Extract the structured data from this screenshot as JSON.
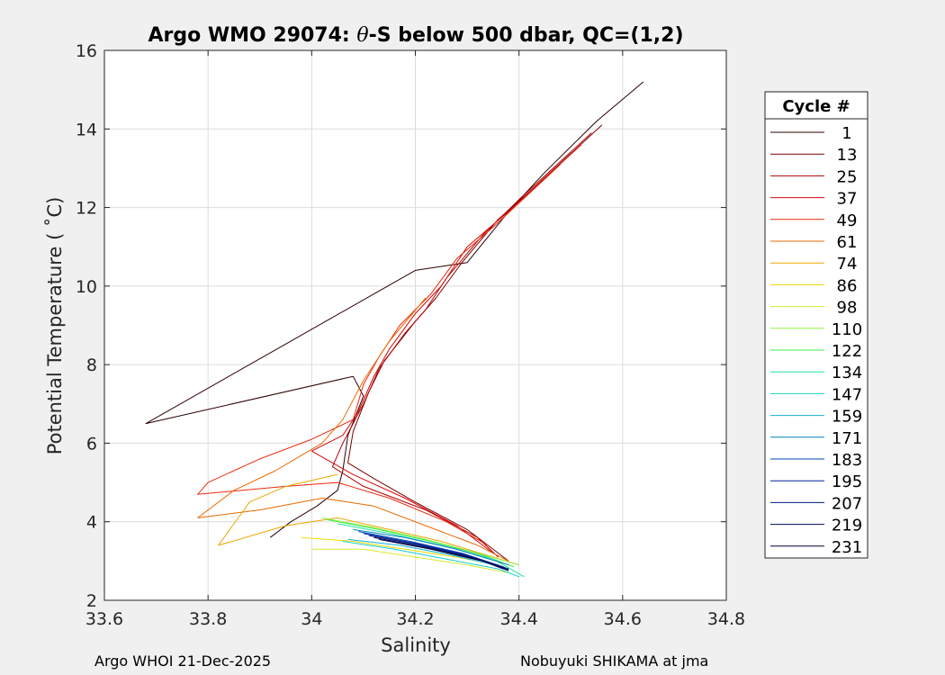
{
  "chart_data": {
    "type": "line",
    "title_prefix": "Argo WMO 29074: ",
    "title_theta": "θ",
    "title_suffix": "-S below 500 dbar,  QC=(1,2)",
    "xlabel": "Salinity",
    "ylabel": "Potential Temperature ( ˚C)",
    "xlim": [
      33.6,
      34.8
    ],
    "ylim": [
      2,
      16
    ],
    "xticks": [
      33.6,
      33.8,
      34,
      34.2,
      34.4,
      34.6,
      34.8
    ],
    "xtick_labels": [
      "33.6",
      "33.8",
      "34",
      "34.2",
      "34.4",
      "34.6",
      "34.8"
    ],
    "yticks": [
      2,
      4,
      6,
      8,
      10,
      12,
      14,
      16
    ],
    "ytick_labels": [
      "2",
      "4",
      "6",
      "8",
      "10",
      "12",
      "14",
      "16"
    ],
    "grid": true,
    "legend": {
      "title": "Cycle #",
      "placement": "outside-right",
      "entries": [
        {
          "label": "1",
          "color": "#2a0000"
        },
        {
          "label": "13",
          "color": "#7a0000"
        },
        {
          "label": "25",
          "color": "#b00000"
        },
        {
          "label": "37",
          "color": "#d80808"
        },
        {
          "label": "49",
          "color": "#e82a10"
        },
        {
          "label": "61",
          "color": "#e86a00"
        },
        {
          "label": "74",
          "color": "#e8a800"
        },
        {
          "label": "86",
          "color": "#f0d800"
        },
        {
          "label": "98",
          "color": "#d8e830"
        },
        {
          "label": "110",
          "color": "#90f040"
        },
        {
          "label": "122",
          "color": "#40e850"
        },
        {
          "label": "134",
          "color": "#20e0a0"
        },
        {
          "label": "147",
          "color": "#10d0d0"
        },
        {
          "label": "159",
          "color": "#10b0d8"
        },
        {
          "label": "171",
          "color": "#0080c0"
        },
        {
          "label": "183",
          "color": "#0048b0"
        },
        {
          "label": "195",
          "color": "#0020a0"
        },
        {
          "label": "207",
          "color": "#001880"
        },
        {
          "label": "219",
          "color": "#000858"
        },
        {
          "label": "231",
          "color": "#000040"
        }
      ]
    },
    "series": [
      {
        "name": "cycle-1",
        "color": "#2a0000",
        "points": [
          [
            34.64,
            15.2
          ],
          [
            34.55,
            14.2
          ],
          [
            34.45,
            12.9
          ],
          [
            34.38,
            11.9
          ],
          [
            34.3,
            10.6
          ],
          [
            34.2,
            10.4
          ],
          [
            33.68,
            6.5
          ],
          [
            34.08,
            7.7
          ],
          [
            34.1,
            7.2
          ],
          [
            34.07,
            6.2
          ],
          [
            34.06,
            5.3
          ],
          [
            34.05,
            4.8
          ],
          [
            34.01,
            4.4
          ],
          [
            33.96,
            4.0
          ],
          [
            33.92,
            3.6
          ]
        ]
      },
      {
        "name": "cycle-13",
        "color": "#7a0000",
        "points": [
          [
            34.56,
            14.1
          ],
          [
            34.42,
            12.4
          ],
          [
            34.36,
            11.7
          ],
          [
            34.29,
            10.6
          ],
          [
            34.24,
            9.7
          ],
          [
            34.2,
            9.1
          ],
          [
            34.14,
            8.1
          ],
          [
            34.11,
            7.3
          ],
          [
            34.08,
            6.3
          ],
          [
            34.07,
            5.5
          ],
          [
            34.12,
            5.1
          ],
          [
            34.2,
            4.5
          ],
          [
            34.3,
            3.8
          ],
          [
            34.38,
            3.0
          ]
        ]
      },
      {
        "name": "cycle-25",
        "color": "#b00000",
        "points": [
          [
            34.54,
            13.9
          ],
          [
            34.4,
            12.2
          ],
          [
            34.33,
            11.3
          ],
          [
            34.26,
            10.2
          ],
          [
            34.22,
            9.4
          ],
          [
            34.18,
            8.8
          ],
          [
            34.13,
            7.9
          ],
          [
            34.1,
            7.0
          ],
          [
            34.06,
            6.0
          ],
          [
            34.04,
            5.4
          ],
          [
            34.1,
            4.9
          ],
          [
            34.22,
            4.3
          ],
          [
            34.32,
            3.6
          ],
          [
            34.36,
            3.1
          ]
        ]
      },
      {
        "name": "cycle-37",
        "color": "#d80808",
        "points": [
          [
            34.52,
            13.6
          ],
          [
            34.38,
            11.9
          ],
          [
            34.3,
            11.0
          ],
          [
            34.25,
            10.0
          ],
          [
            34.2,
            9.3
          ],
          [
            34.15,
            8.4
          ],
          [
            34.12,
            7.7
          ],
          [
            34.09,
            6.8
          ],
          [
            34.06,
            6.2
          ],
          [
            34.0,
            5.8
          ],
          [
            34.08,
            5.2
          ],
          [
            34.18,
            4.6
          ],
          [
            34.28,
            3.9
          ],
          [
            34.35,
            3.2
          ]
        ]
      },
      {
        "name": "cycle-49",
        "color": "#e82a10",
        "points": [
          [
            34.48,
            13.1
          ],
          [
            34.35,
            11.5
          ],
          [
            34.28,
            10.7
          ],
          [
            34.23,
            9.8
          ],
          [
            34.17,
            9.0
          ],
          [
            34.13,
            8.2
          ],
          [
            34.1,
            7.5
          ],
          [
            34.08,
            6.6
          ],
          [
            34.0,
            6.1
          ],
          [
            33.9,
            5.6
          ],
          [
            33.8,
            5.0
          ],
          [
            33.78,
            4.7
          ],
          [
            33.95,
            4.9
          ],
          [
            34.05,
            5.0
          ],
          [
            34.15,
            4.6
          ],
          [
            34.26,
            4.0
          ],
          [
            34.34,
            3.4
          ]
        ]
      },
      {
        "name": "cycle-61",
        "color": "#e86a00",
        "points": [
          [
            34.22,
            9.7
          ],
          [
            34.15,
            8.6
          ],
          [
            34.1,
            7.6
          ],
          [
            34.06,
            6.6
          ],
          [
            34.02,
            6.0
          ],
          [
            33.93,
            5.3
          ],
          [
            33.85,
            4.8
          ],
          [
            33.78,
            4.1
          ],
          [
            33.9,
            4.3
          ],
          [
            34.02,
            4.6
          ],
          [
            34.12,
            4.4
          ],
          [
            34.22,
            3.9
          ],
          [
            34.32,
            3.4
          ],
          [
            34.38,
            3.0
          ]
        ]
      },
      {
        "name": "cycle-74",
        "color": "#e8a800",
        "points": [
          [
            34.05,
            5.2
          ],
          [
            33.95,
            4.9
          ],
          [
            33.88,
            4.5
          ],
          [
            33.82,
            3.4
          ],
          [
            33.95,
            3.9
          ],
          [
            34.05,
            4.1
          ],
          [
            34.15,
            3.8
          ],
          [
            34.25,
            3.5
          ],
          [
            34.35,
            3.1
          ],
          [
            34.4,
            2.9
          ]
        ]
      },
      {
        "name": "cycle-86",
        "color": "#f0d800",
        "points": [
          [
            33.98,
            3.6
          ],
          [
            34.08,
            3.5
          ],
          [
            34.18,
            3.3
          ],
          [
            34.28,
            3.1
          ],
          [
            34.36,
            2.9
          ]
        ]
      },
      {
        "name": "cycle-98",
        "color": "#d8e830",
        "points": [
          [
            34.0,
            3.3
          ],
          [
            34.1,
            3.3
          ],
          [
            34.2,
            3.1
          ],
          [
            34.3,
            2.9
          ],
          [
            34.38,
            2.7
          ]
        ]
      },
      {
        "name": "cycle-110",
        "color": "#90f040",
        "points": [
          [
            34.02,
            4.1
          ],
          [
            34.12,
            3.85
          ],
          [
            34.22,
            3.55
          ],
          [
            34.32,
            3.2
          ],
          [
            34.4,
            2.9
          ]
        ]
      },
      {
        "name": "cycle-122",
        "color": "#40e850",
        "points": [
          [
            34.03,
            4.05
          ],
          [
            34.13,
            3.8
          ],
          [
            34.23,
            3.5
          ],
          [
            34.33,
            3.15
          ],
          [
            34.39,
            2.85
          ]
        ]
      },
      {
        "name": "cycle-134",
        "color": "#20e0a0",
        "points": [
          [
            34.05,
            3.95
          ],
          [
            34.15,
            3.7
          ],
          [
            34.25,
            3.4
          ],
          [
            34.35,
            3.05
          ],
          [
            34.41,
            2.6
          ]
        ]
      },
      {
        "name": "cycle-147",
        "color": "#10d0d0",
        "points": [
          [
            34.06,
            3.5
          ],
          [
            34.16,
            3.3
          ],
          [
            34.26,
            3.05
          ],
          [
            34.36,
            2.8
          ],
          [
            34.4,
            2.6
          ]
        ]
      },
      {
        "name": "cycle-159",
        "color": "#10b0d8",
        "points": [
          [
            34.07,
            3.55
          ],
          [
            34.17,
            3.4
          ],
          [
            34.27,
            3.15
          ],
          [
            34.37,
            2.85
          ]
        ]
      },
      {
        "name": "cycle-171",
        "color": "#0080c0",
        "points": [
          [
            34.08,
            3.8
          ],
          [
            34.18,
            3.6
          ],
          [
            34.28,
            3.3
          ],
          [
            34.38,
            2.9
          ]
        ]
      },
      {
        "name": "cycle-183",
        "color": "#0048b0",
        "points": [
          [
            34.09,
            3.75
          ],
          [
            34.19,
            3.5
          ],
          [
            34.29,
            3.2
          ],
          [
            34.37,
            2.85
          ]
        ]
      },
      {
        "name": "cycle-195",
        "color": "#0020a0",
        "points": [
          [
            34.1,
            3.7
          ],
          [
            34.2,
            3.45
          ],
          [
            34.3,
            3.15
          ],
          [
            34.38,
            2.8
          ]
        ]
      },
      {
        "name": "cycle-207",
        "color": "#001880",
        "points": [
          [
            34.11,
            3.65
          ],
          [
            34.21,
            3.4
          ],
          [
            34.31,
            3.1
          ],
          [
            34.37,
            2.8
          ]
        ]
      },
      {
        "name": "cycle-219",
        "color": "#000858",
        "points": [
          [
            34.12,
            3.6
          ],
          [
            34.22,
            3.35
          ],
          [
            34.32,
            3.05
          ],
          [
            34.38,
            2.75
          ]
        ]
      },
      {
        "name": "cycle-231",
        "color": "#000040",
        "points": [
          [
            34.13,
            3.55
          ],
          [
            34.23,
            3.3
          ],
          [
            34.33,
            3.0
          ],
          [
            34.38,
            2.78
          ]
        ]
      }
    ]
  },
  "footer": {
    "left": "Argo WHOI 21-Dec-2025",
    "right": "Nobuyuki SHIKAMA at jma"
  }
}
